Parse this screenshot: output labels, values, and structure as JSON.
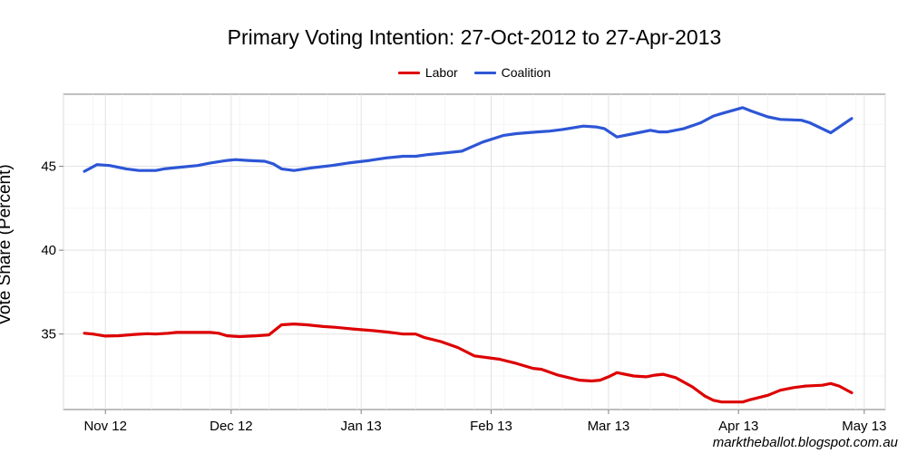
{
  "chart_data": {
    "type": "line",
    "title": "Primary Voting Intention: 27-Oct-2012 to 27-Apr-2013",
    "ylabel": "Vote Share (Percent)",
    "xlabel": "",
    "x_axis_type": "date",
    "xlim": [
      "2012-10-22",
      "2013-05-06"
    ],
    "ylim": [
      30.5,
      49.3
    ],
    "y_ticks": [
      35,
      40,
      45
    ],
    "x_ticks": [
      {
        "date": "2012-11-01",
        "label": "Nov 12"
      },
      {
        "date": "2012-12-01",
        "label": "Dec 12"
      },
      {
        "date": "2013-01-01",
        "label": "Jan 13"
      },
      {
        "date": "2013-02-01",
        "label": "Feb 13"
      },
      {
        "date": "2013-03-01",
        "label": "Mar 13"
      },
      {
        "date": "2013-04-01",
        "label": "Apr 13"
      },
      {
        "date": "2013-05-01",
        "label": "May 13"
      }
    ],
    "grid": true,
    "legend_position": "top",
    "series": [
      {
        "name": "Labor",
        "color": "#dd0000",
        "points": [
          [
            "2012-10-27",
            35.05
          ],
          [
            "2012-10-29",
            35.0
          ],
          [
            "2012-11-01",
            34.88
          ],
          [
            "2012-11-04",
            34.9
          ],
          [
            "2012-11-08",
            34.98
          ],
          [
            "2012-11-11",
            35.02
          ],
          [
            "2012-11-13",
            35.0
          ],
          [
            "2012-11-16",
            35.05
          ],
          [
            "2012-11-18",
            35.1
          ],
          [
            "2012-11-22",
            35.1
          ],
          [
            "2012-11-26",
            35.1
          ],
          [
            "2012-11-28",
            35.05
          ],
          [
            "2012-11-30",
            34.9
          ],
          [
            "2012-12-03",
            34.85
          ],
          [
            "2012-12-07",
            34.9
          ],
          [
            "2012-12-10",
            34.95
          ],
          [
            "2012-12-13",
            35.55
          ],
          [
            "2012-12-16",
            35.6
          ],
          [
            "2012-12-19",
            35.55
          ],
          [
            "2012-12-23",
            35.45
          ],
          [
            "2012-12-26",
            35.4
          ],
          [
            "2012-12-30",
            35.3
          ],
          [
            "2013-01-04",
            35.2
          ],
          [
            "2013-01-08",
            35.1
          ],
          [
            "2013-01-11",
            35.0
          ],
          [
            "2013-01-14",
            35.0
          ],
          [
            "2013-01-16",
            34.8
          ],
          [
            "2013-01-20",
            34.55
          ],
          [
            "2013-01-24",
            34.2
          ],
          [
            "2013-01-28",
            33.7
          ],
          [
            "2013-02-03",
            33.5
          ],
          [
            "2013-02-07",
            33.25
          ],
          [
            "2013-02-11",
            32.95
          ],
          [
            "2013-02-13",
            32.9
          ],
          [
            "2013-02-17",
            32.55
          ],
          [
            "2013-02-22",
            32.25
          ],
          [
            "2013-02-25",
            32.2
          ],
          [
            "2013-02-27",
            32.25
          ],
          [
            "2013-03-01",
            32.45
          ],
          [
            "2013-03-03",
            32.7
          ],
          [
            "2013-03-07",
            32.5
          ],
          [
            "2013-03-10",
            32.45
          ],
          [
            "2013-03-12",
            32.55
          ],
          [
            "2013-03-14",
            32.6
          ],
          [
            "2013-03-17",
            32.4
          ],
          [
            "2013-03-21",
            31.85
          ],
          [
            "2013-03-24",
            31.3
          ],
          [
            "2013-03-26",
            31.05
          ],
          [
            "2013-03-28",
            30.95
          ],
          [
            "2013-04-02",
            30.95
          ],
          [
            "2013-04-04",
            31.1
          ],
          [
            "2013-04-08",
            31.35
          ],
          [
            "2013-04-11",
            31.65
          ],
          [
            "2013-04-14",
            31.8
          ],
          [
            "2013-04-17",
            31.9
          ],
          [
            "2013-04-21",
            31.95
          ],
          [
            "2013-04-23",
            32.05
          ],
          [
            "2013-04-25",
            31.9
          ],
          [
            "2013-04-28",
            31.5
          ]
        ]
      },
      {
        "name": "Coalition",
        "color": "#2d56d6",
        "points": [
          [
            "2012-10-27",
            44.7
          ],
          [
            "2012-10-30",
            45.1
          ],
          [
            "2012-11-02",
            45.05
          ],
          [
            "2012-11-06",
            44.85
          ],
          [
            "2012-11-09",
            44.75
          ],
          [
            "2012-11-13",
            44.75
          ],
          [
            "2012-11-15",
            44.85
          ],
          [
            "2012-11-19",
            44.95
          ],
          [
            "2012-11-23",
            45.05
          ],
          [
            "2012-11-26",
            45.2
          ],
          [
            "2012-11-30",
            45.35
          ],
          [
            "2012-12-02",
            45.4
          ],
          [
            "2012-12-05",
            45.35
          ],
          [
            "2012-12-09",
            45.3
          ],
          [
            "2012-12-11",
            45.15
          ],
          [
            "2012-12-13",
            44.85
          ],
          [
            "2012-12-16",
            44.75
          ],
          [
            "2012-12-20",
            44.9
          ],
          [
            "2012-12-25",
            45.05
          ],
          [
            "2012-12-29",
            45.2
          ],
          [
            "2013-01-03",
            45.35
          ],
          [
            "2013-01-07",
            45.5
          ],
          [
            "2013-01-11",
            45.6
          ],
          [
            "2013-01-14",
            45.6
          ],
          [
            "2013-01-17",
            45.7
          ],
          [
            "2013-01-21",
            45.8
          ],
          [
            "2013-01-25",
            45.9
          ],
          [
            "2013-01-30",
            46.45
          ],
          [
            "2013-02-04",
            46.85
          ],
          [
            "2013-02-07",
            46.95
          ],
          [
            "2013-02-12",
            47.05
          ],
          [
            "2013-02-15",
            47.1
          ],
          [
            "2013-02-18",
            47.2
          ],
          [
            "2013-02-23",
            47.4
          ],
          [
            "2013-02-26",
            47.35
          ],
          [
            "2013-02-28",
            47.25
          ],
          [
            "2013-03-03",
            46.75
          ],
          [
            "2013-03-07",
            46.95
          ],
          [
            "2013-03-11",
            47.15
          ],
          [
            "2013-03-13",
            47.05
          ],
          [
            "2013-03-15",
            47.05
          ],
          [
            "2013-03-19",
            47.25
          ],
          [
            "2013-03-23",
            47.6
          ],
          [
            "2013-03-26",
            48.0
          ],
          [
            "2013-03-28",
            48.15
          ],
          [
            "2013-04-02",
            48.5
          ],
          [
            "2013-04-04",
            48.3
          ],
          [
            "2013-04-08",
            47.95
          ],
          [
            "2013-04-11",
            47.8
          ],
          [
            "2013-04-16",
            47.75
          ],
          [
            "2013-04-18",
            47.6
          ],
          [
            "2013-04-23",
            47.0
          ],
          [
            "2013-04-28",
            47.85
          ]
        ]
      }
    ]
  },
  "credit": "marktheballot.blogspot.com.au"
}
